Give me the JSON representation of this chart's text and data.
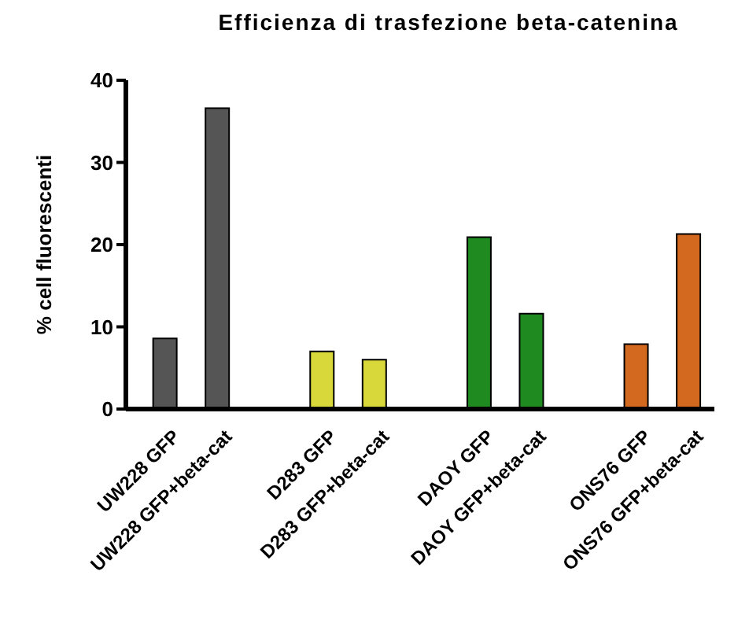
{
  "chart_data": {
    "type": "bar",
    "title": "Efficienza di trasfezione beta-catenina",
    "ylabel": "% cell fluorescenti",
    "categories": [
      "UW228 GFP",
      "UW228 GFP+beta-cat",
      null,
      "D283 GFP",
      "D283 GFP+beta-cat",
      null,
      "DAOY GFP",
      "DAOY GFP+beta-cat",
      null,
      "ONS76 GFP",
      "ONS76 GFP+beta-cat"
    ],
    "values": [
      8.6,
      36.6,
      null,
      7.0,
      6.0,
      null,
      20.9,
      11.6,
      null,
      7.9,
      21.3
    ],
    "colors": [
      "#555555",
      "#555555",
      "#ffffff",
      "#d8d83a",
      "#d8d83a",
      "#ffffff",
      "#1f8a1f",
      "#1f8a1f",
      "#ffffff",
      "#d2691e",
      "#d2691e"
    ],
    "ylim": [
      0,
      40
    ],
    "yticks": [
      0,
      10,
      20,
      30,
      40
    ],
    "grid": false
  }
}
